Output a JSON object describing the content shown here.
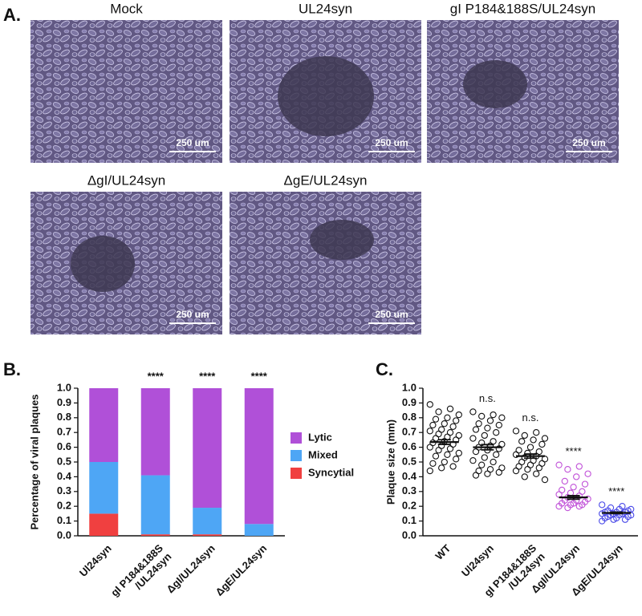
{
  "panel_a": {
    "label": "A.",
    "images": [
      {
        "title": "Mock",
        "scale": "250 um"
      },
      {
        "title": "UL24syn",
        "scale": "250 um"
      },
      {
        "title": "gI P184&188S/UL24syn",
        "scale": "250 um"
      },
      {
        "title": "ΔgI/UL24syn",
        "scale": "250 um"
      },
      {
        "title": "ΔgE/UL24syn",
        "scale": "250 um"
      }
    ]
  },
  "chart_data": [
    {
      "type": "bar",
      "stacked": true,
      "panel_label": "B.",
      "y_label": "Percentage of viral plaques",
      "categories": [
        "Ul24syn",
        "gI P184&188S\n/UL24syn",
        "ΔgI/UL24syn",
        "ΔgE/UL24syn"
      ],
      "annotations": [
        null,
        "****",
        "****",
        "****"
      ],
      "series": [
        {
          "name": "Syncytial",
          "color": "#f04040",
          "values": [
            0.15,
            0.01,
            0.01,
            0
          ]
        },
        {
          "name": "Mixed",
          "color": "#4ea6f5",
          "values": [
            0.35,
            0.4,
            0.18,
            0.08
          ]
        },
        {
          "name": "Lytic",
          "color": "#b050d8",
          "values": [
            0.5,
            0.59,
            0.81,
            0.92
          ]
        }
      ],
      "ylim": [
        0,
        1.0
      ],
      "yticks": [
        {
          "value": 0,
          "label": "0.0"
        },
        0.1,
        0.2,
        0.3,
        0.4,
        0.5,
        0.6,
        0.7,
        0.8,
        0.9,
        {
          "value": 1,
          "label": "1.0"
        }
      ],
      "legend": "right"
    },
    {
      "type": "strip",
      "panel_label": "C.",
      "y_label": "Plaque size (mm)",
      "categories": [
        "WT",
        "Ul24syn",
        "gI P184&188S\n/UL24syn",
        "ΔgI/UL24syn",
        "ΔgE/UL24syn"
      ],
      "annotations": [
        null,
        "n.s.",
        "n.s.",
        "****",
        "****"
      ],
      "colors": [
        "#111111",
        "#111111",
        "#111111",
        "#c050d8",
        "#4a4ae8"
      ],
      "series": [
        [
          0.89,
          0.86,
          0.84,
          0.82,
          0.8,
          0.79,
          0.78,
          0.76,
          0.75,
          0.74,
          0.72,
          0.71,
          0.7,
          0.69,
          0.68,
          0.67,
          0.66,
          0.65,
          0.64,
          0.63,
          0.62,
          0.61,
          0.6,
          0.59,
          0.58,
          0.56,
          0.55,
          0.54,
          0.52,
          0.5,
          0.49,
          0.47,
          0.46,
          0.44
        ],
        [
          0.84,
          0.82,
          0.81,
          0.8,
          0.78,
          0.76,
          0.75,
          0.73,
          0.72,
          0.7,
          0.68,
          0.66,
          0.64,
          0.63,
          0.62,
          0.61,
          0.6,
          0.59,
          0.58,
          0.57,
          0.55,
          0.53,
          0.51,
          0.5,
          0.48,
          0.46,
          0.45,
          0.44,
          0.43,
          0.42,
          0.41
        ],
        [
          0.71,
          0.7,
          0.68,
          0.66,
          0.65,
          0.64,
          0.62,
          0.6,
          0.58,
          0.57,
          0.56,
          0.55,
          0.54,
          0.53,
          0.52,
          0.51,
          0.5,
          0.49,
          0.48,
          0.47,
          0.46,
          0.45,
          0.44,
          0.42,
          0.4,
          0.38
        ],
        [
          0.48,
          0.47,
          0.45,
          0.42,
          0.4,
          0.37,
          0.35,
          0.33,
          0.31,
          0.3,
          0.29,
          0.28,
          0.27,
          0.26,
          0.25,
          0.24,
          0.24,
          0.23,
          0.22,
          0.22,
          0.21,
          0.21,
          0.2,
          0.2,
          0.19
        ],
        [
          0.21,
          0.2,
          0.19,
          0.18,
          0.18,
          0.17,
          0.17,
          0.16,
          0.16,
          0.16,
          0.15,
          0.15,
          0.15,
          0.14,
          0.14,
          0.14,
          0.13,
          0.13,
          0.12,
          0.12,
          0.11,
          0.11,
          0.1
        ]
      ],
      "means": [
        0.635,
        0.6,
        0.54,
        0.26,
        0.155
      ],
      "errors": [
        0.016,
        0.018,
        0.014,
        0.012,
        0.005
      ],
      "ylim": [
        0,
        1.0
      ],
      "yticks": [
        {
          "value": 0,
          "label": "0.0"
        },
        0.1,
        0.2,
        0.3,
        0.4,
        0.5,
        0.6,
        0.7,
        0.8,
        0.9,
        {
          "value": 1,
          "label": "1.0"
        }
      ]
    }
  ]
}
